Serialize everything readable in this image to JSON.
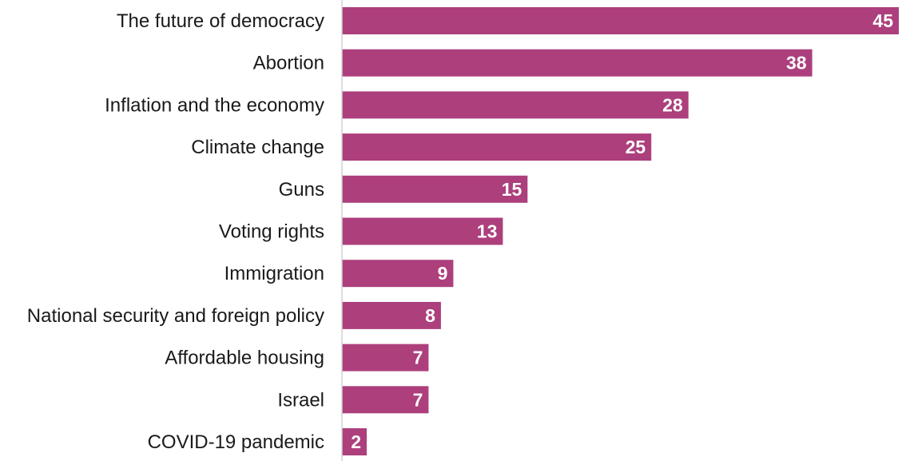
{
  "chart_data": {
    "type": "bar",
    "orientation": "horizontal",
    "categories": [
      "The future of democracy",
      "Abortion",
      "Inflation and the economy",
      "Climate change",
      "Guns",
      "Voting rights",
      "Immigration",
      "National security and foreign policy",
      "Affordable housing",
      "Israel",
      "COVID-19 pandemic"
    ],
    "values": [
      45,
      38,
      28,
      25,
      15,
      13,
      9,
      8,
      7,
      7,
      2
    ],
    "data_labels": [
      "45",
      "38",
      "28",
      "25",
      "15",
      "13",
      "9",
      "8",
      "7",
      "7",
      "2"
    ],
    "title": "",
    "xlabel": "",
    "ylabel": "",
    "xlim": [
      0,
      45
    ],
    "grid": false,
    "legend": "none",
    "bar_color": "#AC3F7C"
  }
}
